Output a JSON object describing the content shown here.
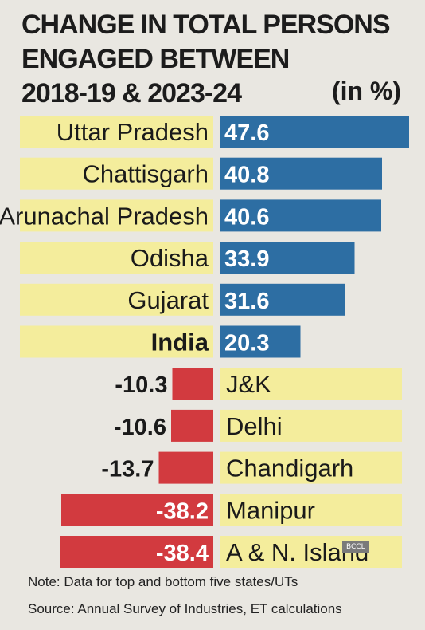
{
  "title_lines": [
    "CHANGE IN TOTAL PERSONS",
    "ENGAGED BETWEEN",
    "2018-19 & 2023-24"
  ],
  "unit": "(in %)",
  "note": "Note: Data for top and bottom five states/UTs",
  "source": "Source: Annual Survey of Industries, ET calculations",
  "watermark": "BCCL",
  "colors": {
    "positive": "#2d6ea3",
    "negative": "#d23a3f",
    "label_band": "#f4ed9c",
    "text": "#1a1a1a",
    "value_text": "#ffffff"
  },
  "chart_data": {
    "type": "bar",
    "orientation": "horizontal",
    "categories": [
      "Uttar Pradesh",
      "Chattisgarh",
      "Arunachal Pradesh",
      "Odisha",
      "Gujarat",
      "India",
      "J&K",
      "Delhi",
      "Chandigarh",
      "Manipur",
      "A & N. Island"
    ],
    "values": [
      47.6,
      40.8,
      40.6,
      33.9,
      31.6,
      20.3,
      -10.3,
      -10.6,
      -13.7,
      -38.2,
      -38.4
    ],
    "value_labels": [
      "47.6",
      "40.8",
      "40.6",
      "33.9",
      "31.6",
      "20.3",
      "-10.3",
      "-10.6",
      "-13.7",
      "-38.2",
      "-38.4"
    ],
    "bold_categories": [
      "India"
    ],
    "xlim": [
      -48,
      48
    ],
    "legend": "none",
    "grid": false
  }
}
